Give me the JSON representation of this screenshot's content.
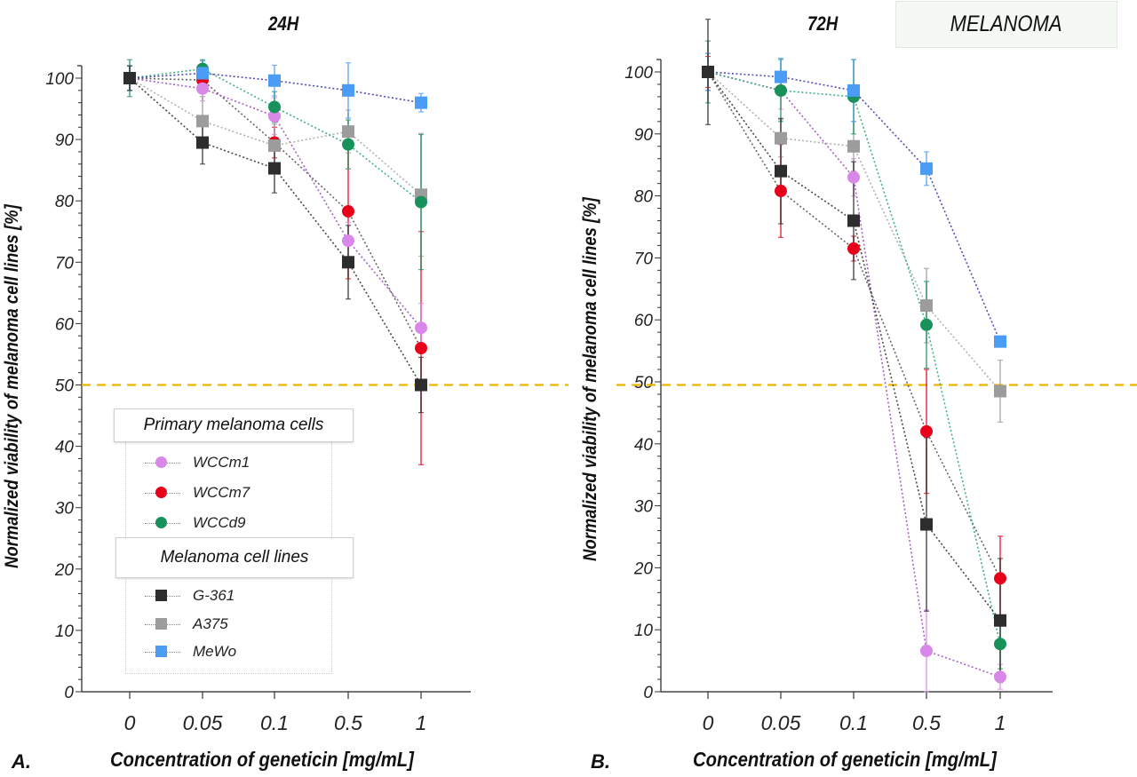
{
  "figure": {
    "badge_label": "MELANOMA",
    "threshold_color": "#f0b400"
  },
  "legend": {
    "groups": [
      {
        "title": "Primary melanoma cells",
        "items": [
          {
            "label": "WCCm1",
            "color": "#d987e8",
            "marker": "circle"
          },
          {
            "label": "WCCm7",
            "color": "#e8001a",
            "marker": "circle"
          },
          {
            "label": "WCCd9",
            "color": "#18925a",
            "marker": "circle"
          }
        ]
      },
      {
        "title": "Melanoma cell lines",
        "items": [
          {
            "label": "G-361",
            "color": "#2d2d2d",
            "marker": "square"
          },
          {
            "label": "A375",
            "color": "#9c9c9c",
            "marker": "square"
          },
          {
            "label": "MeWo",
            "color": "#4a9cf5",
            "marker": "square"
          }
        ]
      }
    ]
  },
  "chart_data": [
    {
      "type": "line",
      "panel_letter": "A.",
      "title": "24H",
      "xlabel": "Concentration of geneticin [mg/mL]",
      "ylabel": "Normalized viability of melanoma cell lines [%]",
      "categories": [
        "0",
        "0.05",
        "0.1",
        "0.5",
        "1"
      ],
      "ylim": [
        0,
        100
      ],
      "yticks": [
        0,
        10,
        20,
        30,
        40,
        50,
        60,
        70,
        80,
        90,
        100
      ],
      "threshold": 50,
      "grid": false,
      "series": [
        {
          "name": "G-361",
          "color": "#2d2d2d",
          "marker": "square",
          "line_color": "#333333",
          "values": [
            100,
            89.5,
            85.3,
            70,
            50
          ],
          "err": [
            2,
            3.5,
            4,
            6,
            4.5
          ]
        },
        {
          "name": "A375",
          "color": "#9c9c9c",
          "marker": "square",
          "line_color": "#a8a8a8",
          "values": [
            100,
            93,
            89,
            91.3,
            81
          ],
          "err": [
            2,
            4,
            3.5,
            3.5,
            10
          ]
        },
        {
          "name": "MeWo",
          "color": "#4a9cf5",
          "marker": "square",
          "line_color": "#3b3bb0",
          "values": [
            100,
            100.8,
            99.6,
            98,
            96
          ],
          "err": [
            2,
            2,
            2.5,
            4.5,
            1.5
          ]
        },
        {
          "name": "WCCm1",
          "color": "#d987e8",
          "marker": "circle",
          "line_color": "#9b4fc4",
          "values": [
            100,
            98.3,
            93.8,
            73.5,
            59.3
          ],
          "err": [
            2,
            2,
            3,
            3,
            4
          ]
        },
        {
          "name": "WCCm7",
          "color": "#e8001a",
          "marker": "circle",
          "line_color": "#555555",
          "values": [
            100,
            99.7,
            89.5,
            78.3,
            56
          ],
          "err": [
            2,
            1.5,
            2.5,
            11,
            19
          ]
        },
        {
          "name": "WCCd9",
          "color": "#18925a",
          "marker": "circle",
          "line_color": "#2faa7a",
          "values": [
            100,
            101.5,
            95.3,
            89.2,
            79.8
          ],
          "err": [
            3,
            1.5,
            2.5,
            4,
            11
          ]
        }
      ]
    },
    {
      "type": "line",
      "panel_letter": "B.",
      "title": "72H",
      "xlabel": "Concentration of geneticin [mg/mL]",
      "ylabel": "Normalized viability of melanoma cell lines [%]",
      "categories": [
        "0",
        "0.05",
        "0.1",
        "0.5",
        "1"
      ],
      "ylim": [
        0,
        100
      ],
      "yticks": [
        0,
        10,
        20,
        30,
        40,
        50,
        60,
        70,
        80,
        90,
        100
      ],
      "threshold": 49.5,
      "grid": false,
      "series": [
        {
          "name": "G-361",
          "color": "#2d2d2d",
          "marker": "square",
          "line_color": "#333333",
          "values": [
            100,
            84,
            76,
            27,
            11.5
          ],
          "err": [
            8.5,
            8.5,
            9.5,
            14,
            10
          ]
        },
        {
          "name": "A375",
          "color": "#9c9c9c",
          "marker": "square",
          "line_color": "#a8a8a8",
          "values": [
            100,
            89.3,
            88,
            62.3,
            48.5
          ],
          "err": [
            3,
            3,
            4,
            6,
            5
          ]
        },
        {
          "name": "MeWo",
          "color": "#4a9cf5",
          "marker": "square",
          "line_color": "#3b3bb0",
          "values": [
            100,
            99.2,
            97,
            84.4,
            56.5
          ],
          "err": [
            3,
            3,
            5,
            2.7,
            0.5
          ]
        },
        {
          "name": "WCCm1",
          "color": "#d987e8",
          "marker": "circle",
          "line_color": "#9b4fc4",
          "values": [
            100,
            97,
            83,
            6.6,
            2.4
          ],
          "err": [
            3,
            3,
            3,
            6.6,
            2
          ]
        },
        {
          "name": "WCCm7",
          "color": "#e8001a",
          "marker": "circle",
          "line_color": "#555555",
          "values": [
            100,
            80.8,
            71.5,
            42,
            18.3
          ],
          "err": [
            2.5,
            7.5,
            2,
            10,
            6.8
          ]
        },
        {
          "name": "WCCd9",
          "color": "#18925a",
          "marker": "circle",
          "line_color": "#2faa7a",
          "values": [
            100,
            97,
            96,
            59.2,
            7.7
          ],
          "err": [
            5,
            5,
            6,
            7,
            4
          ]
        }
      ]
    }
  ]
}
